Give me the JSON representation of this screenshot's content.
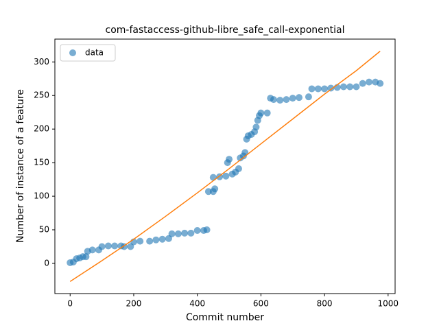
{
  "chart_data": {
    "type": "scatter",
    "title": "com-fastaccess-github-libre_safe_call-exponential",
    "xlabel": "Commit number",
    "ylabel": "Number of instance of a feature",
    "xlim": [
      -48,
      1022
    ],
    "ylim": [
      -45,
      334
    ],
    "xticks": [
      0,
      200,
      400,
      600,
      800,
      1000
    ],
    "yticks": [
      0,
      50,
      100,
      150,
      200,
      250,
      300
    ],
    "legend": "upper left",
    "series": [
      {
        "name": "data",
        "type": "scatter",
        "color": "#1f77b4",
        "x": [
          0,
          10,
          20,
          30,
          40,
          50,
          55,
          70,
          90,
          100,
          120,
          140,
          160,
          170,
          190,
          200,
          220,
          250,
          270,
          290,
          310,
          320,
          340,
          360,
          380,
          400,
          420,
          430,
          435,
          450,
          455,
          450,
          470,
          490,
          495,
          500,
          510,
          520,
          530,
          535,
          545,
          550,
          555,
          560,
          570,
          580,
          585,
          590,
          595,
          600,
          620,
          630,
          640,
          660,
          680,
          700,
          720,
          750,
          760,
          780,
          800,
          820,
          840,
          860,
          880,
          900,
          920,
          940,
          960,
          975
        ],
        "values": [
          1,
          2,
          7,
          8,
          10,
          10,
          18,
          20,
          20,
          25,
          26,
          26,
          26,
          25,
          25,
          32,
          33,
          33,
          35,
          36,
          37,
          44,
          44,
          45,
          45,
          49,
          49,
          50,
          107,
          107,
          111,
          128,
          129,
          130,
          150,
          155,
          133,
          136,
          141,
          157,
          160,
          165,
          185,
          190,
          192,
          196,
          203,
          213,
          220,
          224,
          224,
          246,
          244,
          243,
          244,
          246,
          247,
          248,
          260,
          260,
          260,
          261,
          262,
          263,
          263,
          263,
          268,
          270,
          270,
          268
        ]
      },
      {
        "type": "line",
        "color": "#ff7f0e",
        "x": [
          0,
          100,
          200,
          300,
          400,
          500,
          600,
          700,
          800,
          900,
          975
        ],
        "values": [
          -27,
          4,
          36,
          70,
          105,
          141,
          178,
          215,
          252,
          287,
          316
        ]
      }
    ]
  }
}
